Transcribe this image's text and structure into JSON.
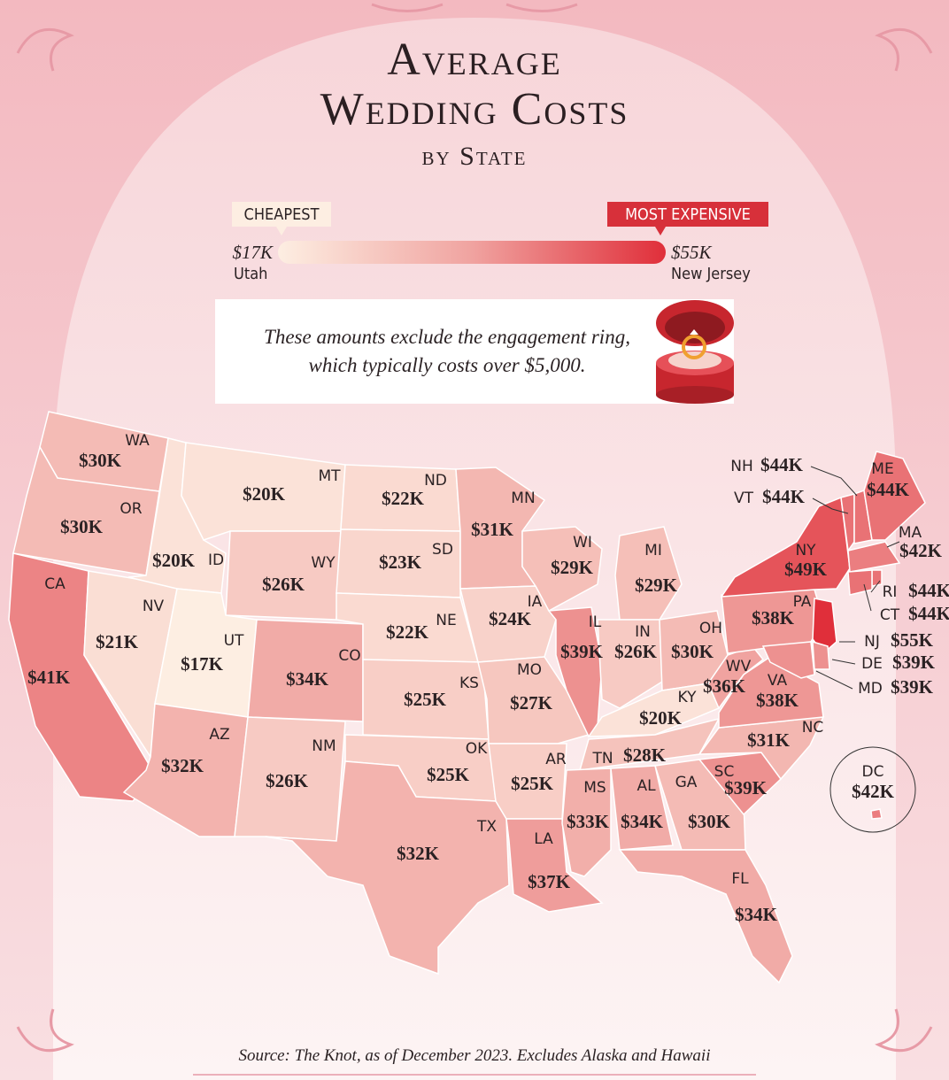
{
  "title_lines": [
    "Average",
    "Wedding Costs"
  ],
  "subtitle": "by State",
  "legend": {
    "min_label": "CHEAPEST",
    "min": {
      "value": 17000,
      "label": "$17K"
    },
    "min_state": "Utah",
    "max_label": "MOST EXPENSIVE",
    "max": {
      "value": 55000,
      "label": "$55K"
    },
    "max_state": "New Jersey"
  },
  "note": [
    "These amounts exclude the engagement ring,",
    "which typically costs over $5,000."
  ],
  "states": [
    {
      "abbr": "WA",
      "value": 30000,
      "value_label": "$30K"
    },
    {
      "abbr": "OR",
      "value": 30000,
      "value_label": "$30K"
    },
    {
      "abbr": "CA",
      "value": 41000,
      "value_label": "$41K"
    },
    {
      "abbr": "NV",
      "value": 21000,
      "value_label": "$21K"
    },
    {
      "abbr": "ID",
      "value": 20000,
      "value_label": "$20K"
    },
    {
      "abbr": "MT",
      "value": 20000,
      "value_label": "$20K"
    },
    {
      "abbr": "WY",
      "value": 26000,
      "value_label": "$26K"
    },
    {
      "abbr": "UT",
      "value": 17000,
      "value_label": "$17K"
    },
    {
      "abbr": "CO",
      "value": 34000,
      "value_label": "$34K"
    },
    {
      "abbr": "AZ",
      "value": 32000,
      "value_label": "$32K"
    },
    {
      "abbr": "NM",
      "value": 26000,
      "value_label": "$26K"
    },
    {
      "abbr": "ND",
      "value": 22000,
      "value_label": "$22K"
    },
    {
      "abbr": "SD",
      "value": 23000,
      "value_label": "$23K"
    },
    {
      "abbr": "NE",
      "value": 22000,
      "value_label": "$22K"
    },
    {
      "abbr": "KS",
      "value": 25000,
      "value_label": "$25K"
    },
    {
      "abbr": "OK",
      "value": 25000,
      "value_label": "$25K"
    },
    {
      "abbr": "TX",
      "value": 32000,
      "value_label": "$32K"
    },
    {
      "abbr": "MN",
      "value": 31000,
      "value_label": "$31K"
    },
    {
      "abbr": "IA",
      "value": 24000,
      "value_label": "$24K"
    },
    {
      "abbr": "MO",
      "value": 27000,
      "value_label": "$27K"
    },
    {
      "abbr": "AR",
      "value": 25000,
      "value_label": "$25K"
    },
    {
      "abbr": "LA",
      "value": 37000,
      "value_label": "$37K"
    },
    {
      "abbr": "WI",
      "value": 29000,
      "value_label": "$29K"
    },
    {
      "abbr": "IL",
      "value": 39000,
      "value_label": "$39K"
    },
    {
      "abbr": "MI",
      "value": 29000,
      "value_label": "$29K"
    },
    {
      "abbr": "IN",
      "value": 26000,
      "value_label": "$26K"
    },
    {
      "abbr": "OH",
      "value": 30000,
      "value_label": "$30K"
    },
    {
      "abbr": "KY",
      "value": 20000,
      "value_label": "$20K"
    },
    {
      "abbr": "TN",
      "value": 28000,
      "value_label": "$28K"
    },
    {
      "abbr": "MS",
      "value": 33000,
      "value_label": "$33K"
    },
    {
      "abbr": "AL",
      "value": 34000,
      "value_label": "$34K"
    },
    {
      "abbr": "GA",
      "value": 30000,
      "value_label": "$30K"
    },
    {
      "abbr": "FL",
      "value": 34000,
      "value_label": "$34K"
    },
    {
      "abbr": "SC",
      "value": 39000,
      "value_label": "$39K"
    },
    {
      "abbr": "NC",
      "value": 31000,
      "value_label": "$31K"
    },
    {
      "abbr": "VA",
      "value": 38000,
      "value_label": "$38K"
    },
    {
      "abbr": "WV",
      "value": 36000,
      "value_label": "$36K"
    },
    {
      "abbr": "PA",
      "value": 38000,
      "value_label": "$38K"
    },
    {
      "abbr": "NY",
      "value": 49000,
      "value_label": "$49K"
    },
    {
      "abbr": "NJ",
      "value": 55000,
      "value_label": "$55K"
    },
    {
      "abbr": "DE",
      "value": 39000,
      "value_label": "$39K"
    },
    {
      "abbr": "MD",
      "value": 39000,
      "value_label": "$39K"
    },
    {
      "abbr": "VT",
      "value": 44000,
      "value_label": "$44K"
    },
    {
      "abbr": "NH",
      "value": 44000,
      "value_label": "$44K"
    },
    {
      "abbr": "ME",
      "value": 44000,
      "value_label": "$44K"
    },
    {
      "abbr": "MA",
      "value": 42000,
      "value_label": "$42K"
    },
    {
      "abbr": "RI",
      "value": 44000,
      "value_label": "$44K"
    },
    {
      "abbr": "CT",
      "value": 44000,
      "value_label": "$44K"
    },
    {
      "abbr": "DC",
      "value": 42000,
      "value_label": "$42K"
    }
  ],
  "source": "Source: The Knot, as of December 2023. Excludes Alaska and Hawaii"
}
